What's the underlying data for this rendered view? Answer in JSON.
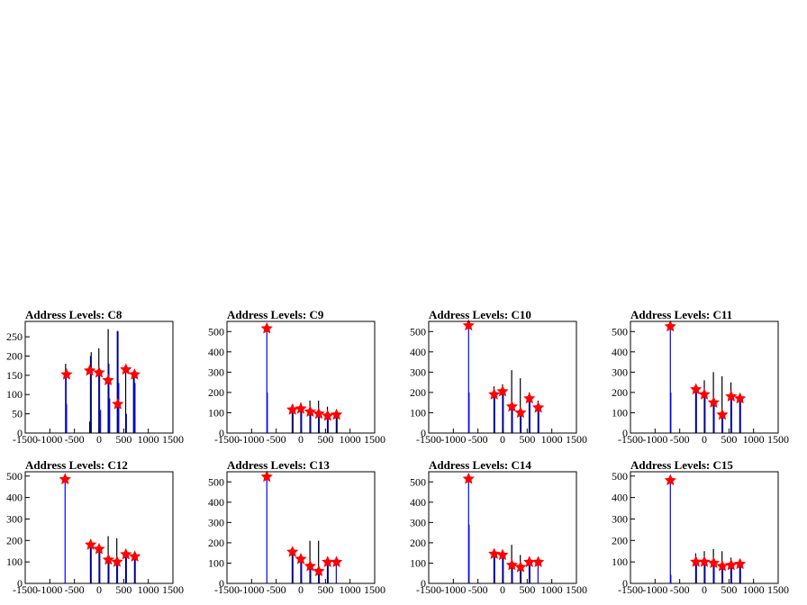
{
  "chart_data": [
    {
      "type": "bar",
      "title": "Address Levels: C8",
      "xlim": [
        -1500,
        1500
      ],
      "ylim": [
        0,
        290
      ],
      "yticks": [
        0,
        50,
        100,
        150,
        200,
        250
      ],
      "xticks": [
        -1500,
        -1000,
        -500,
        0,
        500,
        1000,
        1500
      ],
      "bars": [
        {
          "x": -680,
          "y": 180,
          "c": "black"
        },
        {
          "x": -670,
          "y": 150,
          "c": "blue"
        },
        {
          "x": -660,
          "y": 75,
          "c": "blue"
        },
        {
          "x": -190,
          "y": 30,
          "c": "black"
        },
        {
          "x": -175,
          "y": 200,
          "c": "blue"
        },
        {
          "x": -160,
          "y": 210,
          "c": "black"
        },
        {
          "x": -5,
          "y": 220,
          "c": "black"
        },
        {
          "x": 10,
          "y": 150,
          "c": "blue"
        },
        {
          "x": 30,
          "y": 60,
          "c": "blue"
        },
        {
          "x": 185,
          "y": 270,
          "c": "black"
        },
        {
          "x": 200,
          "y": 180,
          "c": "blue"
        },
        {
          "x": 215,
          "y": 90,
          "c": "blue"
        },
        {
          "x": 370,
          "y": 265,
          "c": "black"
        },
        {
          "x": 385,
          "y": 265,
          "c": "blue"
        },
        {
          "x": 400,
          "y": 130,
          "c": "blue"
        },
        {
          "x": 540,
          "y": 175,
          "c": "black"
        },
        {
          "x": 555,
          "y": 50,
          "c": "blue"
        },
        {
          "x": 700,
          "y": 160,
          "c": "black"
        },
        {
          "x": 715,
          "y": 150,
          "c": "blue"
        },
        {
          "x": 730,
          "y": 130,
          "c": "blue"
        }
      ],
      "markers": [
        {
          "x": -660,
          "y": 152
        },
        {
          "x": -190,
          "y": 162
        },
        {
          "x": 0,
          "y": 157
        },
        {
          "x": 185,
          "y": 137
        },
        {
          "x": 380,
          "y": 75
        },
        {
          "x": 545,
          "y": 165
        },
        {
          "x": 720,
          "y": 152
        }
      ]
    },
    {
      "type": "bar",
      "title": "Address Levels: C9",
      "xlim": [
        -1500,
        1500
      ],
      "ylim": [
        0,
        550
      ],
      "yticks": [
        0,
        100,
        200,
        300,
        400,
        500
      ],
      "xticks": [
        -1500,
        -1000,
        -500,
        0,
        500,
        1000,
        1500
      ],
      "bars": [
        {
          "x": -690,
          "y": 510,
          "c": "blue"
        },
        {
          "x": -680,
          "y": 200,
          "c": "blue"
        },
        {
          "x": -175,
          "y": 140,
          "c": "blue"
        },
        {
          "x": -160,
          "y": 140,
          "c": "black"
        },
        {
          "x": 0,
          "y": 150,
          "c": "black"
        },
        {
          "x": 15,
          "y": 120,
          "c": "blue"
        },
        {
          "x": 185,
          "y": 160,
          "c": "black"
        },
        {
          "x": 200,
          "y": 120,
          "c": "blue"
        },
        {
          "x": 360,
          "y": 160,
          "c": "black"
        },
        {
          "x": 375,
          "y": 100,
          "c": "blue"
        },
        {
          "x": 540,
          "y": 130,
          "c": "black"
        },
        {
          "x": 555,
          "y": 100,
          "c": "blue"
        },
        {
          "x": 720,
          "y": 110,
          "c": "blue"
        },
        {
          "x": 735,
          "y": 95,
          "c": "black"
        }
      ],
      "markers": [
        {
          "x": -690,
          "y": 515
        },
        {
          "x": -170,
          "y": 115
        },
        {
          "x": 0,
          "y": 120
        },
        {
          "x": 190,
          "y": 105
        },
        {
          "x": 365,
          "y": 95
        },
        {
          "x": 545,
          "y": 85
        },
        {
          "x": 725,
          "y": 90
        }
      ]
    },
    {
      "type": "bar",
      "title": "Address Levels: C10",
      "xlim": [
        -1500,
        1500
      ],
      "ylim": [
        0,
        550
      ],
      "yticks": [
        0,
        100,
        200,
        300,
        400,
        500
      ],
      "xticks": [
        -1500,
        -1000,
        -500,
        0,
        500,
        1000,
        1500
      ],
      "bars": [
        {
          "x": -690,
          "y": 530,
          "c": "blue"
        },
        {
          "x": -680,
          "y": 200,
          "c": "blue"
        },
        {
          "x": -175,
          "y": 230,
          "c": "black"
        },
        {
          "x": -160,
          "y": 200,
          "c": "blue"
        },
        {
          "x": 0,
          "y": 240,
          "c": "black"
        },
        {
          "x": 15,
          "y": 200,
          "c": "blue"
        },
        {
          "x": 185,
          "y": 310,
          "c": "black"
        },
        {
          "x": 200,
          "y": 130,
          "c": "blue"
        },
        {
          "x": 360,
          "y": 270,
          "c": "black"
        },
        {
          "x": 375,
          "y": 100,
          "c": "blue"
        },
        {
          "x": 540,
          "y": 200,
          "c": "black"
        },
        {
          "x": 555,
          "y": 170,
          "c": "blue"
        },
        {
          "x": 720,
          "y": 160,
          "c": "black"
        },
        {
          "x": 735,
          "y": 125,
          "c": "blue"
        }
      ],
      "markers": [
        {
          "x": -690,
          "y": 530
        },
        {
          "x": -170,
          "y": 190
        },
        {
          "x": 0,
          "y": 205
        },
        {
          "x": 190,
          "y": 130
        },
        {
          "x": 365,
          "y": 100
        },
        {
          "x": 545,
          "y": 170
        },
        {
          "x": 725,
          "y": 125
        }
      ]
    },
    {
      "type": "bar",
      "title": "Address Levels: C11",
      "xlim": [
        -1500,
        1500
      ],
      "ylim": [
        0,
        550
      ],
      "yticks": [
        0,
        100,
        200,
        300,
        400,
        500
      ],
      "xticks": [
        -1500,
        -1000,
        -500,
        0,
        500,
        1000,
        1500
      ],
      "bars": [
        {
          "x": -690,
          "y": 525,
          "c": "blue"
        },
        {
          "x": -680,
          "y": 200,
          "c": "blue"
        },
        {
          "x": -175,
          "y": 230,
          "c": "black"
        },
        {
          "x": -160,
          "y": 200,
          "c": "blue"
        },
        {
          "x": 0,
          "y": 260,
          "c": "black"
        },
        {
          "x": 15,
          "y": 190,
          "c": "blue"
        },
        {
          "x": 185,
          "y": 300,
          "c": "black"
        },
        {
          "x": 200,
          "y": 150,
          "c": "blue"
        },
        {
          "x": 360,
          "y": 280,
          "c": "black"
        },
        {
          "x": 375,
          "y": 90,
          "c": "blue"
        },
        {
          "x": 540,
          "y": 250,
          "c": "black"
        },
        {
          "x": 555,
          "y": 180,
          "c": "blue"
        },
        {
          "x": 720,
          "y": 190,
          "c": "black"
        },
        {
          "x": 735,
          "y": 170,
          "c": "blue"
        }
      ],
      "markers": [
        {
          "x": -690,
          "y": 525
        },
        {
          "x": -170,
          "y": 215
        },
        {
          "x": 0,
          "y": 190
        },
        {
          "x": 190,
          "y": 150
        },
        {
          "x": 365,
          "y": 90
        },
        {
          "x": 545,
          "y": 180
        },
        {
          "x": 725,
          "y": 170
        }
      ]
    },
    {
      "type": "bar",
      "title": "Address Levels: C12",
      "xlim": [
        -1500,
        1500
      ],
      "ylim": [
        0,
        520
      ],
      "yticks": [
        0,
        100,
        200,
        300,
        400,
        500
      ],
      "xticks": [
        -1500,
        -1000,
        -500,
        0,
        500,
        1000,
        1500
      ],
      "bars": [
        {
          "x": -690,
          "y": 485,
          "c": "blue"
        },
        {
          "x": -175,
          "y": 190,
          "c": "black"
        },
        {
          "x": -160,
          "y": 180,
          "c": "blue"
        },
        {
          "x": 0,
          "y": 180,
          "c": "black"
        },
        {
          "x": 15,
          "y": 160,
          "c": "blue"
        },
        {
          "x": 185,
          "y": 220,
          "c": "black"
        },
        {
          "x": 200,
          "y": 110,
          "c": "blue"
        },
        {
          "x": 360,
          "y": 210,
          "c": "black"
        },
        {
          "x": 375,
          "y": 100,
          "c": "blue"
        },
        {
          "x": 540,
          "y": 150,
          "c": "black"
        },
        {
          "x": 555,
          "y": 140,
          "c": "blue"
        },
        {
          "x": 720,
          "y": 140,
          "c": "black"
        },
        {
          "x": 735,
          "y": 125,
          "c": "blue"
        }
      ],
      "markers": [
        {
          "x": -690,
          "y": 485
        },
        {
          "x": -170,
          "y": 180
        },
        {
          "x": 0,
          "y": 160
        },
        {
          "x": 190,
          "y": 110
        },
        {
          "x": 365,
          "y": 100
        },
        {
          "x": 545,
          "y": 135
        },
        {
          "x": 725,
          "y": 125
        }
      ]
    },
    {
      "type": "bar",
      "title": "Address Levels: C13",
      "xlim": [
        -1500,
        1500
      ],
      "ylim": [
        0,
        550
      ],
      "yticks": [
        0,
        100,
        200,
        300,
        400,
        500
      ],
      "xticks": [
        -1500,
        -1000,
        -500,
        0,
        500,
        1000,
        1500
      ],
      "bars": [
        {
          "x": -690,
          "y": 525,
          "c": "blue"
        },
        {
          "x": -175,
          "y": 160,
          "c": "black"
        },
        {
          "x": -160,
          "y": 150,
          "c": "blue"
        },
        {
          "x": 0,
          "y": 130,
          "c": "black"
        },
        {
          "x": 15,
          "y": 120,
          "c": "blue"
        },
        {
          "x": 185,
          "y": 210,
          "c": "black"
        },
        {
          "x": 200,
          "y": 90,
          "c": "blue"
        },
        {
          "x": 360,
          "y": 210,
          "c": "black"
        },
        {
          "x": 375,
          "y": 60,
          "c": "blue"
        },
        {
          "x": 540,
          "y": 130,
          "c": "black"
        },
        {
          "x": 555,
          "y": 110,
          "c": "blue"
        },
        {
          "x": 720,
          "y": 110,
          "c": "blue"
        }
      ],
      "markers": [
        {
          "x": -690,
          "y": 525
        },
        {
          "x": -170,
          "y": 155
        },
        {
          "x": 0,
          "y": 120
        },
        {
          "x": 190,
          "y": 85
        },
        {
          "x": 365,
          "y": 60
        },
        {
          "x": 545,
          "y": 105
        },
        {
          "x": 725,
          "y": 105
        }
      ]
    },
    {
      "type": "bar",
      "title": "Address Levels: C14",
      "xlim": [
        -1500,
        1500
      ],
      "ylim": [
        0,
        550
      ],
      "yticks": [
        0,
        100,
        200,
        300,
        400,
        500
      ],
      "xticks": [
        -1500,
        -1000,
        -500,
        0,
        500,
        1000,
        1500
      ],
      "bars": [
        {
          "x": -690,
          "y": 515,
          "c": "blue"
        },
        {
          "x": -680,
          "y": 290,
          "c": "blue"
        },
        {
          "x": -175,
          "y": 150,
          "c": "black"
        },
        {
          "x": -160,
          "y": 140,
          "c": "blue"
        },
        {
          "x": 0,
          "y": 150,
          "c": "black"
        },
        {
          "x": 15,
          "y": 140,
          "c": "blue"
        },
        {
          "x": 185,
          "y": 190,
          "c": "black"
        },
        {
          "x": 200,
          "y": 90,
          "c": "blue"
        },
        {
          "x": 360,
          "y": 140,
          "c": "black"
        },
        {
          "x": 375,
          "y": 80,
          "c": "blue"
        },
        {
          "x": 540,
          "y": 130,
          "c": "black"
        },
        {
          "x": 555,
          "y": 110,
          "c": "blue"
        },
        {
          "x": 720,
          "y": 110,
          "c": "blue"
        }
      ],
      "markers": [
        {
          "x": -690,
          "y": 515
        },
        {
          "x": -170,
          "y": 145
        },
        {
          "x": 0,
          "y": 140
        },
        {
          "x": 190,
          "y": 90
        },
        {
          "x": 365,
          "y": 80
        },
        {
          "x": 545,
          "y": 105
        },
        {
          "x": 725,
          "y": 105
        }
      ]
    },
    {
      "type": "bar",
      "title": "Address Levels: C15",
      "xlim": [
        -1500,
        1500
      ],
      "ylim": [
        0,
        520
      ],
      "yticks": [
        0,
        100,
        200,
        300,
        400,
        500
      ],
      "xticks": [
        -1500,
        -1000,
        -500,
        0,
        500,
        1000,
        1500
      ],
      "bars": [
        {
          "x": -690,
          "y": 480,
          "c": "blue"
        },
        {
          "x": -680,
          "y": 40,
          "c": "blue"
        },
        {
          "x": -175,
          "y": 140,
          "c": "black"
        },
        {
          "x": -160,
          "y": 120,
          "c": "blue"
        },
        {
          "x": 0,
          "y": 150,
          "c": "black"
        },
        {
          "x": 15,
          "y": 100,
          "c": "blue"
        },
        {
          "x": 185,
          "y": 160,
          "c": "black"
        },
        {
          "x": 200,
          "y": 100,
          "c": "blue"
        },
        {
          "x": 360,
          "y": 150,
          "c": "black"
        },
        {
          "x": 375,
          "y": 80,
          "c": "blue"
        },
        {
          "x": 540,
          "y": 120,
          "c": "black"
        },
        {
          "x": 555,
          "y": 90,
          "c": "blue"
        },
        {
          "x": 720,
          "y": 100,
          "c": "black"
        },
        {
          "x": 735,
          "y": 90,
          "c": "blue"
        }
      ],
      "markers": [
        {
          "x": -690,
          "y": 480
        },
        {
          "x": -170,
          "y": 100
        },
        {
          "x": 0,
          "y": 100
        },
        {
          "x": 190,
          "y": 95
        },
        {
          "x": 365,
          "y": 80
        },
        {
          "x": 545,
          "y": 85
        },
        {
          "x": 725,
          "y": 90
        }
      ]
    }
  ],
  "colors": {
    "black": "#000000",
    "blue": "#0000ff",
    "marker": "#ff0000",
    "frame": "#000000"
  }
}
